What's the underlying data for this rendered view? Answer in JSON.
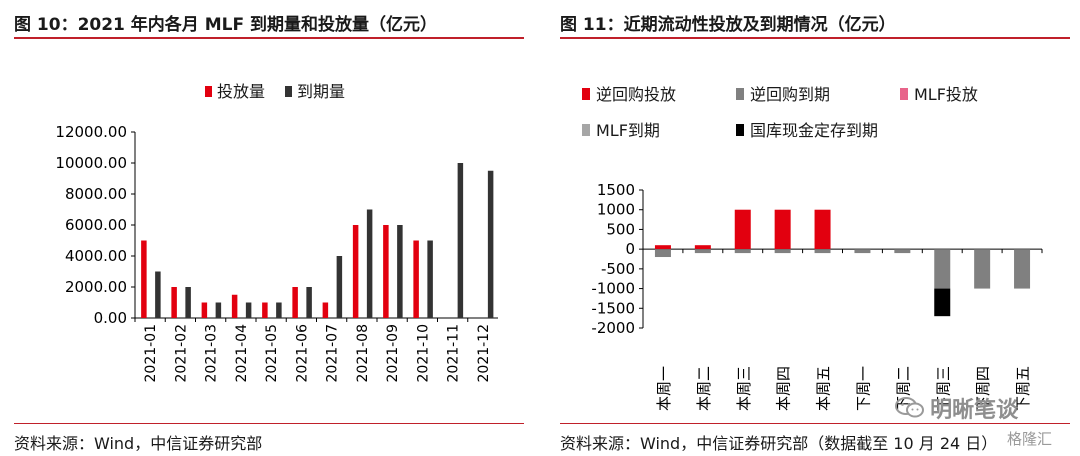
{
  "left_panel": {
    "title": "图 10：2021 年内各月 MLF 到期量和投放量（亿元）",
    "source": "资料来源：Wind，中信证券研究部"
  },
  "right_panel": {
    "title": "图 11：近期流动性投放及到期情况（亿元）",
    "source": "资料来源：Wind，中信证券研究部（数据截至 10 月 24 日）"
  },
  "watermark": {
    "text": "明晰笔谈",
    "corner": "格隆汇"
  },
  "colors": {
    "red": "#e2000f",
    "dark": "#333333",
    "gray": "#808080",
    "pink": "#e8648a",
    "light_gray": "#a6a6a6",
    "black": "#000000",
    "rule": "#c0202a"
  },
  "chart_data": [
    {
      "type": "bar",
      "title": "图 10：2021 年内各月 MLF 到期量和投放量（亿元）",
      "categories": [
        "2021-01",
        "2021-02",
        "2021-03",
        "2021-04",
        "2021-05",
        "2021-06",
        "2021-07",
        "2021-08",
        "2021-09",
        "2021-10",
        "2021-11",
        "2021-12"
      ],
      "series": [
        {
          "name": "投放量",
          "color": "#e2000f",
          "values": [
            5000,
            2000,
            1000,
            1500,
            1000,
            2000,
            1000,
            6000,
            6000,
            5000,
            0,
            0
          ]
        },
        {
          "name": "到期量",
          "color": "#333333",
          "values": [
            3000,
            2000,
            1000,
            1000,
            1000,
            2000,
            4000,
            7000,
            6000,
            5000,
            10000,
            9500
          ]
        }
      ],
      "ylim": [
        0,
        12000
      ],
      "yticks": [
        "0.00",
        "2000.00",
        "4000.00",
        "6000.00",
        "8000.00",
        "10000.00",
        "12000.00"
      ],
      "legend": "top-center",
      "grid": false
    },
    {
      "type": "bar",
      "title": "图 11：近期流动性投放及到期情况（亿元）",
      "categories": [
        "本周一",
        "本周二",
        "本周三",
        "本周四",
        "本周五",
        "下周一",
        "下周二",
        "下周三",
        "下周四",
        "下周五"
      ],
      "series": [
        {
          "name": "逆回购投放",
          "color": "#e2000f",
          "values": [
            100,
            100,
            1000,
            1000,
            1000,
            0,
            0,
            0,
            0,
            0
          ]
        },
        {
          "name": "逆回购到期",
          "color": "#808080",
          "values": [
            -200,
            -100,
            -100,
            -100,
            -100,
            -100,
            -100,
            -1000,
            -1000,
            -1000
          ]
        },
        {
          "name": "MLF投放",
          "color": "#e8648a",
          "values": [
            0,
            0,
            0,
            0,
            0,
            0,
            0,
            0,
            0,
            0
          ]
        },
        {
          "name": "MLF到期",
          "color": "#a6a6a6",
          "values": [
            0,
            0,
            0,
            0,
            0,
            0,
            0,
            0,
            0,
            0
          ]
        },
        {
          "name": "国库现金定存到期",
          "color": "#000000",
          "values": [
            0,
            0,
            0,
            0,
            0,
            0,
            0,
            -700,
            0,
            0
          ]
        }
      ],
      "ylim": [
        -2000,
        1500
      ],
      "yticks": [
        "-2000",
        "-1500",
        "-1000",
        "-500",
        "0",
        "500",
        "1000",
        "1500"
      ],
      "legend": "top-left",
      "grid": false
    }
  ]
}
